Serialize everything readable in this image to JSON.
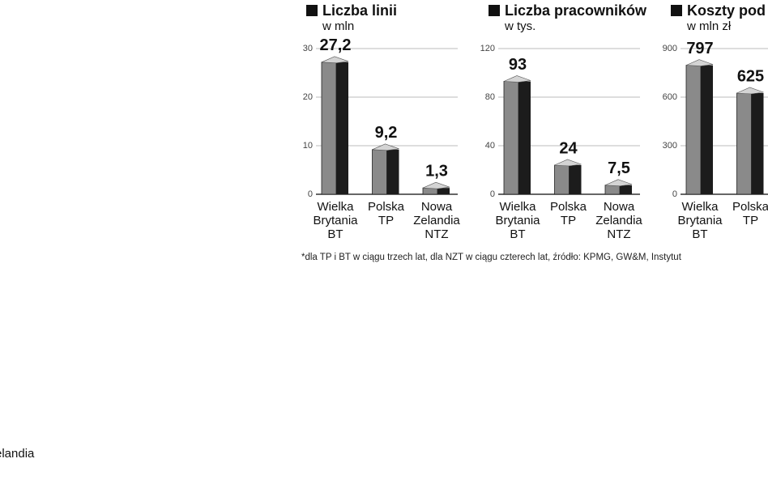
{
  "chart_data": [
    {
      "type": "bar3d",
      "title": "Liczba linii",
      "subtitle": "w mln",
      "categories": [
        [
          "Wielka",
          "Brytania",
          "BT"
        ],
        [
          "Polska",
          "TP"
        ],
        [
          "Nowa",
          "Zelandia",
          "NTZ"
        ]
      ],
      "values": [
        27.2,
        9.2,
        1.3
      ],
      "value_labels": [
        "27,2",
        "9,2",
        "1,3"
      ],
      "ylim": [
        0,
        30
      ],
      "yticks": [
        0,
        10,
        20,
        30
      ],
      "grid": true
    },
    {
      "type": "bar3d",
      "title": "Liczba pracowników",
      "subtitle": "w tys.",
      "categories": [
        [
          "Wielka",
          "Brytania",
          "BT"
        ],
        [
          "Polska",
          "TP"
        ],
        [
          "Nowa",
          "Zelandia",
          "NTZ"
        ]
      ],
      "values": [
        93,
        24,
        7.5
      ],
      "value_labels": [
        "93",
        "24",
        "7,5"
      ],
      "ylim": [
        0,
        120
      ],
      "yticks": [
        0,
        40,
        80,
        120
      ],
      "grid": true
    },
    {
      "type": "bar3d",
      "title": "Koszty pod",
      "subtitle": "w mln zł",
      "categories": [
        [
          "Wielka",
          "Brytania",
          "BT"
        ],
        [
          "Polska",
          "TP"
        ]
      ],
      "values": [
        797,
        625
      ],
      "value_labels": [
        "797",
        "625"
      ],
      "ylim": [
        0,
        900
      ],
      "yticks": [
        0,
        300,
        600,
        900
      ],
      "grid": true
    }
  ],
  "footnote": "*dla TP i BT w ciągu trzech lat, dla NZT w ciągu czterech lat, źródło: KPMG, GW&M, Instytut",
  "stray_text": "elandia"
}
